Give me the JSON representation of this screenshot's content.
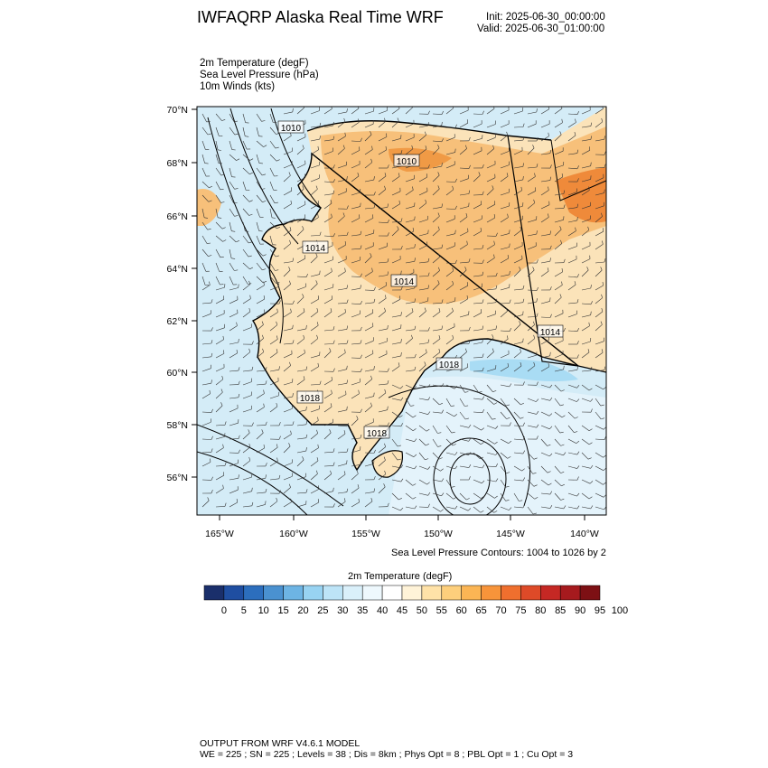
{
  "header": {
    "title": "IWFAQRP Alaska Real Time WRF",
    "init": "Init: 2025-06-30_00:00:00",
    "valid": "Valid: 2025-06-30_01:00:00"
  },
  "fields": [
    "2m Temperature   (degF)",
    "Sea Level Pressure   (hPa)",
    "10m Winds   (kts)"
  ],
  "map": {
    "lat_labels": [
      "70°N",
      "68°N",
      "66°N",
      "64°N",
      "62°N",
      "60°N",
      "58°N",
      "56°N"
    ],
    "lon_labels": [
      "165°W",
      "160°W",
      "155°W",
      "150°W",
      "145°W",
      "140°W"
    ],
    "isobar_labels": [
      "1010",
      "1010",
      "1014",
      "1014",
      "1014",
      "1018",
      "1018",
      "1018"
    ],
    "ocean_color": "#d4ecf7",
    "land_color": "#fbe3b9",
    "warm_color": "#f5a545"
  },
  "contour_note": "Sea Level Pressure Contours: 1004 to 1026 by 2",
  "colorbar": {
    "title": "2m Temperature  (degF)",
    "colors": [
      "#1a2f6b",
      "#1f4ea1",
      "#2c6ebd",
      "#4a91d0",
      "#6db4e4",
      "#98d3f2",
      "#bde4f7",
      "#daf0fa",
      "#eef8fd",
      "#ffffff",
      "#fff3d8",
      "#ffe2a8",
      "#fdcf7c",
      "#fbb554",
      "#f7943a",
      "#ef6f2e",
      "#de4a28",
      "#c52824",
      "#a61a1e",
      "#7d1014"
    ],
    "labels": [
      "0",
      "5",
      "10",
      "15",
      "20",
      "25",
      "30",
      "35",
      "40",
      "45",
      "50",
      "55",
      "60",
      "65",
      "70",
      "75",
      "80",
      "85",
      "90",
      "95",
      "100"
    ]
  },
  "footer": {
    "line1": "OUTPUT FROM WRF V4.6.1 MODEL",
    "line2": "WE = 225 ; SN = 225 ; Levels = 38 ; Dis = 8km ; Phys Opt = 8 ; PBL Opt = 1 ; Cu Opt = 3"
  }
}
